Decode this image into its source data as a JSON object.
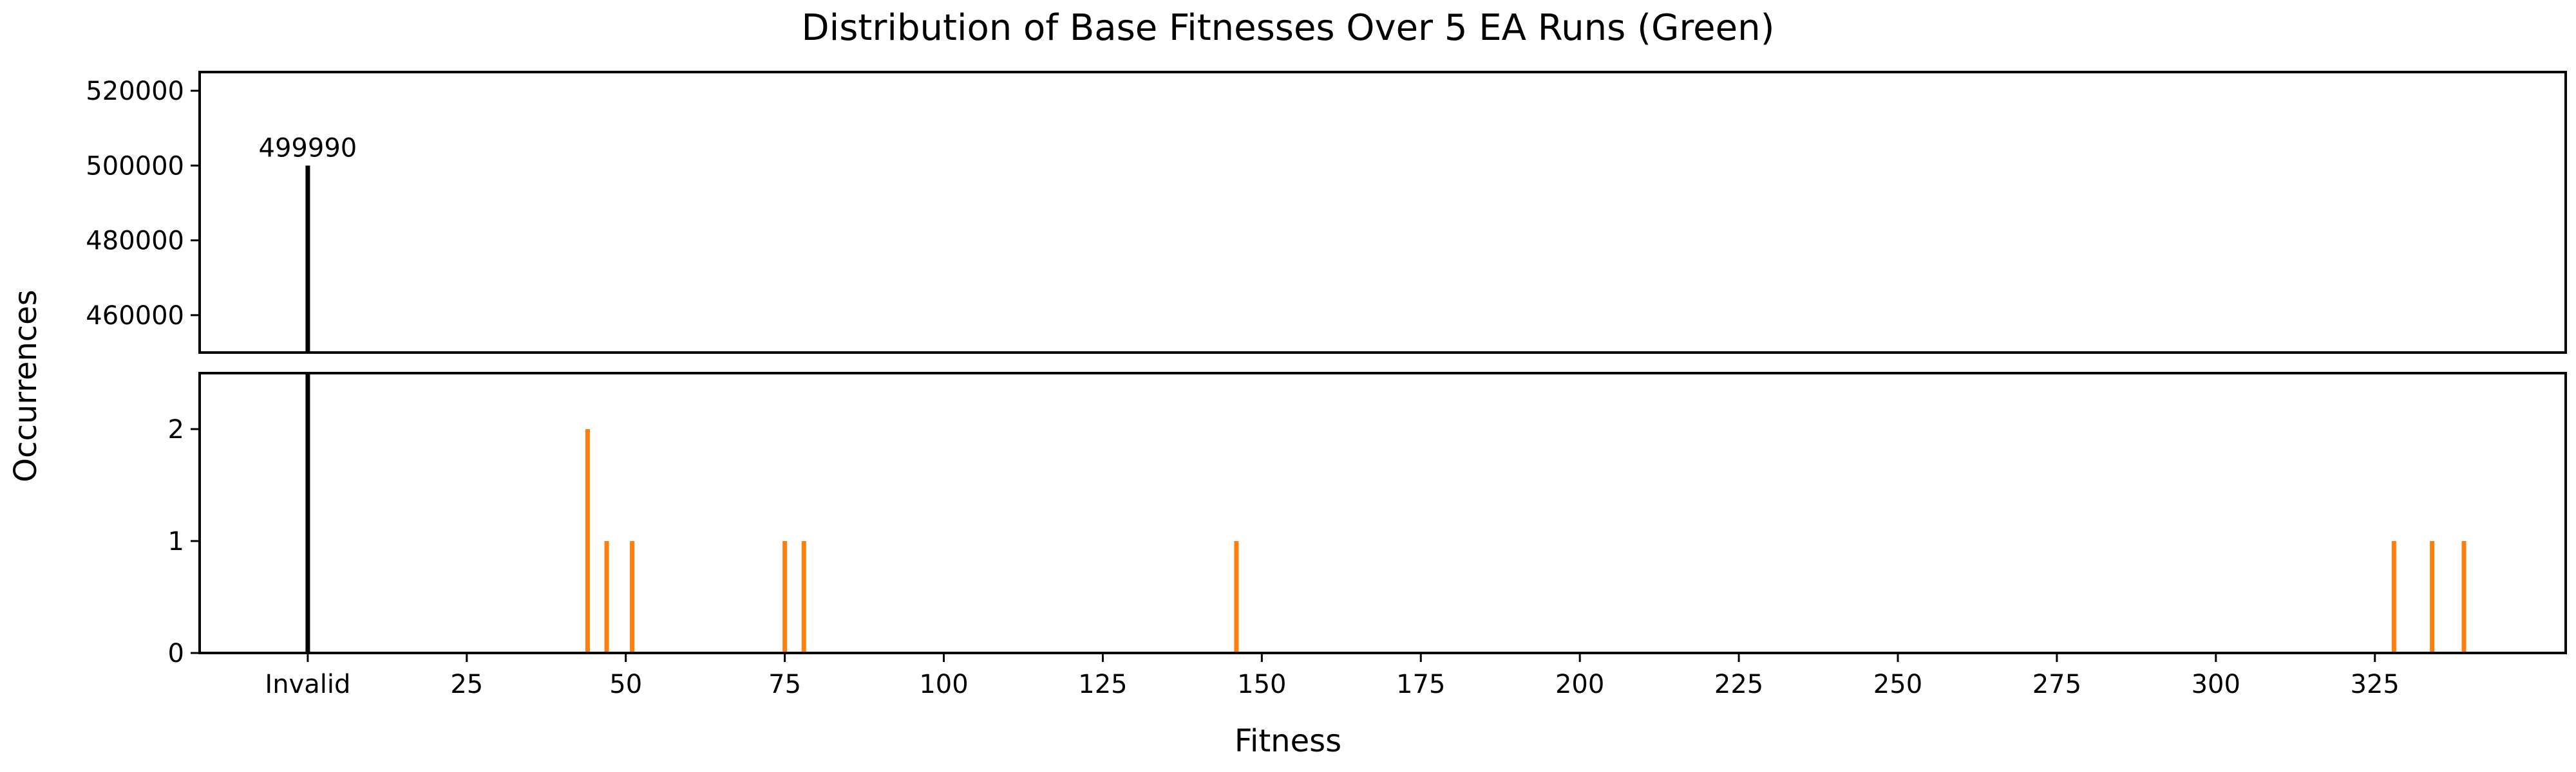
{
  "chart_data": {
    "type": "bar",
    "title": "Distribution of Base Fitnesses Over 5 EA Runs (Green)",
    "xlabel": "Fitness",
    "ylabel": "Occurrences",
    "x_ticks": [
      {
        "value": 0,
        "label": "Invalid"
      },
      {
        "value": 25,
        "label": "25"
      },
      {
        "value": 50,
        "label": "50"
      },
      {
        "value": 75,
        "label": "75"
      },
      {
        "value": 100,
        "label": "100"
      },
      {
        "value": 125,
        "label": "125"
      },
      {
        "value": 150,
        "label": "150"
      },
      {
        "value": 175,
        "label": "175"
      },
      {
        "value": 200,
        "label": "200"
      },
      {
        "value": 225,
        "label": "225"
      },
      {
        "value": 250,
        "label": "250"
      },
      {
        "value": 275,
        "label": "275"
      },
      {
        "value": 300,
        "label": "300"
      },
      {
        "value": 325,
        "label": "325"
      }
    ],
    "xlim": [
      -17,
      355
    ],
    "panels": [
      {
        "name": "upper",
        "ylim": [
          450000,
          525000
        ],
        "y_ticks": [
          "460000",
          "480000",
          "500000",
          "520000"
        ],
        "grid": false
      },
      {
        "name": "lower",
        "ylim": [
          0,
          2.5
        ],
        "y_ticks": [
          "0",
          "1",
          "2"
        ],
        "grid": false
      }
    ],
    "series": [
      {
        "color": "#000000",
        "points": [
          {
            "x": 0,
            "y": 499990,
            "label": "Invalid"
          }
        ]
      },
      {
        "color": "#ff7f0e",
        "points": [
          {
            "x": 44,
            "y": 2
          },
          {
            "x": 47,
            "y": 1
          },
          {
            "x": 51,
            "y": 1
          },
          {
            "x": 75,
            "y": 1
          },
          {
            "x": 78,
            "y": 1
          },
          {
            "x": 146,
            "y": 1
          },
          {
            "x": 328,
            "y": 1
          },
          {
            "x": 334,
            "y": 1
          },
          {
            "x": 339,
            "y": 1
          }
        ]
      }
    ],
    "annotations": [
      {
        "x": 0,
        "y": 499990,
        "text": "499990"
      }
    ]
  }
}
